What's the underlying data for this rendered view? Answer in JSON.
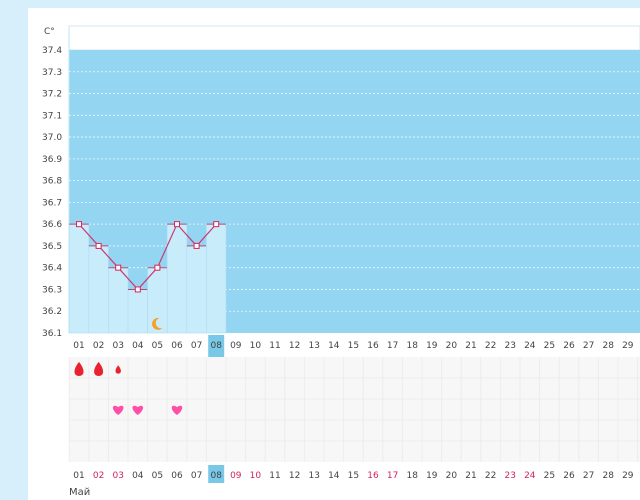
{
  "chart_data": {
    "type": "line",
    "unit_label": "C°",
    "y_ticks": [
      "37.4",
      "37.3",
      "37.2",
      "37.1",
      "37.0",
      "36.9",
      "36.8",
      "36.7",
      "36.6",
      "36.5",
      "36.4",
      "36.3",
      "36.2",
      "36.1"
    ],
    "ylim": [
      36.1,
      37.4
    ],
    "x": [
      "01",
      "02",
      "03",
      "04",
      "05",
      "06",
      "07",
      "08"
    ],
    "series": [
      {
        "values": [
          36.6,
          36.5,
          36.4,
          36.3,
          36.4,
          36.6,
          36.5,
          36.6
        ]
      }
    ],
    "days": [
      "01",
      "02",
      "03",
      "04",
      "05",
      "06",
      "07",
      "08",
      "09",
      "10",
      "11",
      "12",
      "13",
      "14",
      "15",
      "16",
      "17",
      "18",
      "19",
      "20",
      "21",
      "22",
      "23",
      "24",
      "25",
      "26",
      "27",
      "28",
      "29"
    ],
    "highlighted_day": "08",
    "month_label": "Май",
    "colors": {
      "background_zone": "#94d6f2",
      "bar": "#c9ecfb",
      "line": "#c83a72",
      "marker": "#d6245a",
      "today_badge": "#7ac8e8",
      "heart": "#ff4fa6",
      "drop": "#e8232f",
      "moon": "#f2a12a",
      "weekend_text": "#d6245a"
    },
    "moon_day": "05",
    "drop_days": [
      {
        "day": "01",
        "size": "large"
      },
      {
        "day": "02",
        "size": "large"
      },
      {
        "day": "03",
        "size": "small"
      }
    ],
    "heart_days": [
      "03",
      "04",
      "06"
    ],
    "bottom_red_days": [
      "02",
      "03",
      "09",
      "10",
      "16",
      "17",
      "23",
      "24"
    ]
  }
}
